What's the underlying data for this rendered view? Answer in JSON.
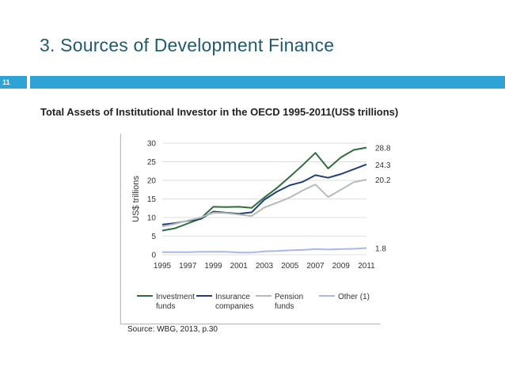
{
  "slide": {
    "title": "3. Sources of Development Finance",
    "number": "11",
    "subtitle": "Total Assets of Institutional Investor in the OECD 1995-2011(US$ trillions)",
    "source": "Source: WBG, 2013, p.30",
    "accent_color": "#2fa3d6",
    "title_color": "#1f5a6e"
  },
  "chart_data": {
    "type": "line",
    "title": "",
    "xlabel": "",
    "ylabel": "US$ trillions",
    "x": [
      1995,
      1996,
      1997,
      1998,
      1999,
      2000,
      2001,
      2002,
      2003,
      2004,
      2005,
      2006,
      2007,
      2008,
      2009,
      2010,
      2011
    ],
    "xticks": [
      "1995",
      "1997",
      "1999",
      "2001",
      "2003",
      "2005",
      "2007",
      "2009",
      "2011"
    ],
    "yticks": [
      "0",
      "5",
      "10",
      "15",
      "20",
      "25",
      "30"
    ],
    "ylim": [
      0,
      30
    ],
    "grid": true,
    "legend_position": "bottom",
    "series": [
      {
        "name": "Investment funds",
        "legend_lines": [
          "Investment",
          "funds"
        ],
        "color": "#2e6e3c",
        "values": [
          6.5,
          7.1,
          8.4,
          9.7,
          12.9,
          12.8,
          12.9,
          12.6,
          15.4,
          18.0,
          21.0,
          24.1,
          27.4,
          23.2,
          26.2,
          28.2,
          28.8
        ],
        "end_label": "28.8"
      },
      {
        "name": "Insurance companies",
        "legend_lines": [
          "Insurance",
          "companies"
        ],
        "color": "#1f3f7a",
        "values": [
          8.1,
          8.5,
          9.1,
          9.6,
          11.6,
          11.3,
          11.0,
          11.4,
          14.8,
          17.0,
          18.7,
          19.6,
          21.4,
          20.7,
          21.7,
          23.0,
          24.3
        ],
        "end_label": "24.3"
      },
      {
        "name": "Pension funds",
        "legend_lines": [
          "Pension",
          "funds"
        ],
        "color": "#b5bcb6",
        "values": [
          7.6,
          8.3,
          9.2,
          10.0,
          11.3,
          11.2,
          10.8,
          10.4,
          12.7,
          14.0,
          15.4,
          17.3,
          18.9,
          15.5,
          17.5,
          19.5,
          20.2
        ],
        "end_label": "20.2"
      },
      {
        "name": "Other (1)",
        "legend_lines": [
          "Other (1)"
        ],
        "color": "#a9b8e6",
        "values": [
          0.7,
          0.7,
          0.7,
          0.8,
          0.8,
          0.8,
          0.6,
          0.6,
          0.9,
          1.0,
          1.2,
          1.3,
          1.5,
          1.4,
          1.5,
          1.6,
          1.8
        ],
        "end_label": "1.8"
      }
    ]
  }
}
